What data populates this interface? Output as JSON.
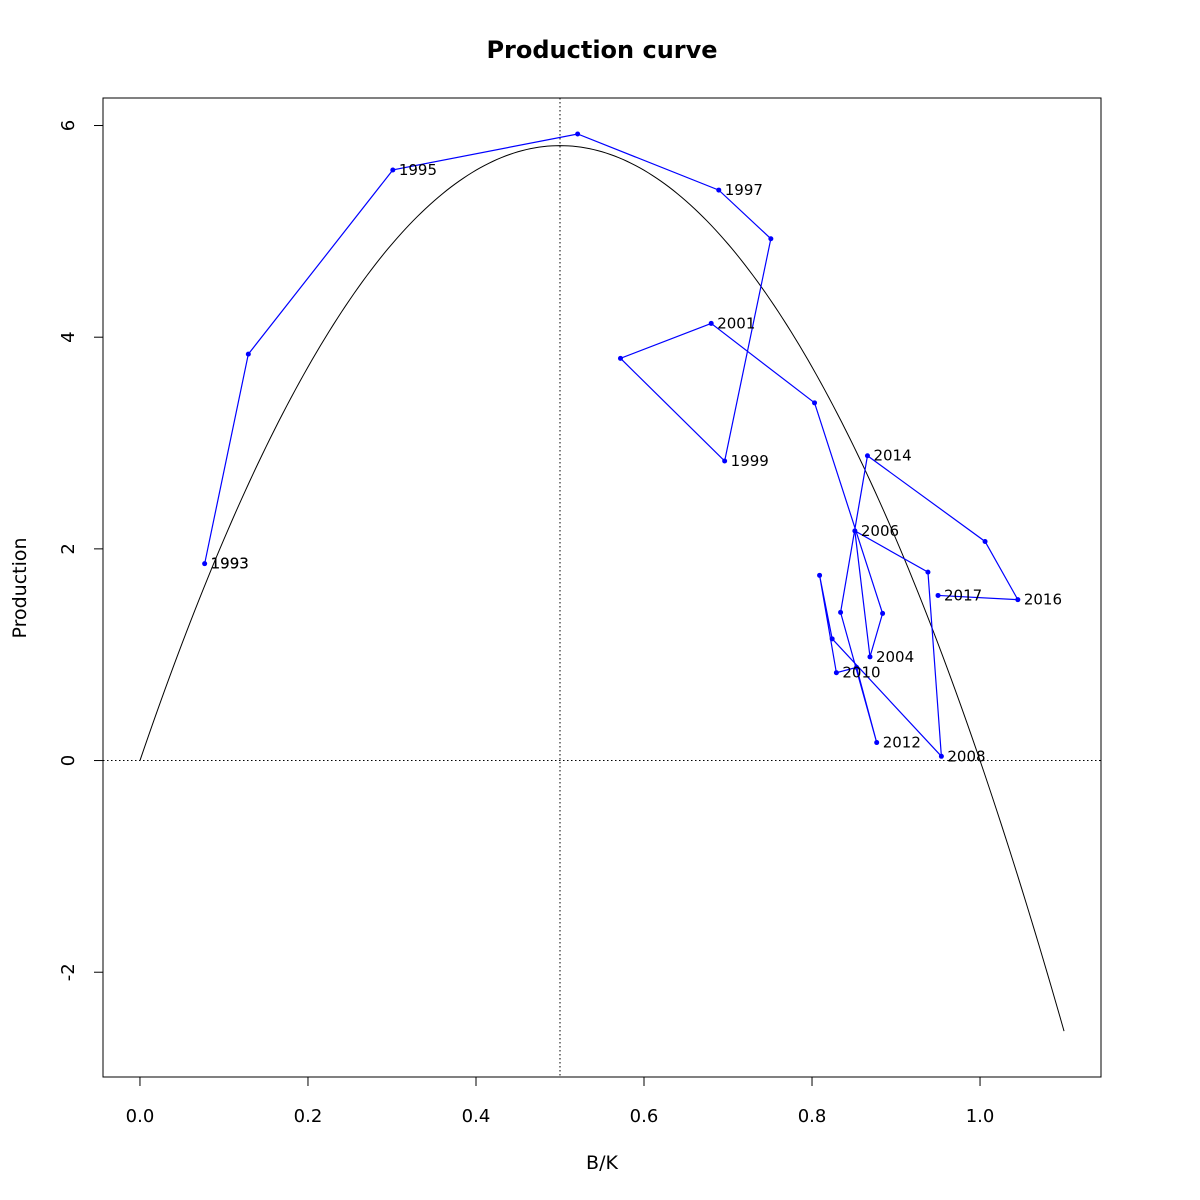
{
  "chart_data": {
    "type": "line",
    "title": "Production curve",
    "xlabel": "B/K",
    "ylabel": "Production",
    "xlim": [
      -0.044,
      1.144
    ],
    "ylim": [
      -2.99,
      6.26
    ],
    "xticks": [
      0.0,
      0.2,
      0.4,
      0.6,
      0.8,
      1.0
    ],
    "xtick_labels": [
      "0.0",
      "0.2",
      "0.4",
      "0.6",
      "0.8",
      "1.0"
    ],
    "yticks": [
      -2,
      0,
      2,
      4,
      6
    ],
    "ytick_labels": [
      "-2",
      "0",
      "2",
      "4",
      "6"
    ],
    "grid": false,
    "reference_lines": {
      "vertical_x": 0.5,
      "horizontal_y": 0
    },
    "curve": {
      "form": "parabola",
      "x_range": [
        0.0,
        1.1
      ],
      "peak": [
        0.5,
        5.81
      ],
      "color": "#000000"
    },
    "series": [
      {
        "color": "#0000ff",
        "points": [
          {
            "year": "1993",
            "x": 0.077,
            "y": 1.86,
            "label": "1993"
          },
          {
            "year": "1994",
            "x": 0.129,
            "y": 3.84,
            "label": ""
          },
          {
            "year": "1995",
            "x": 0.301,
            "y": 5.58,
            "label": "1995"
          },
          {
            "year": "1996",
            "x": 0.521,
            "y": 5.92,
            "label": ""
          },
          {
            "year": "1997",
            "x": 0.689,
            "y": 5.39,
            "label": "1997"
          },
          {
            "year": "1998",
            "x": 0.751,
            "y": 4.93,
            "label": ""
          },
          {
            "year": "1999",
            "x": 0.696,
            "y": 2.83,
            "label": "1999"
          },
          {
            "year": "2000",
            "x": 0.572,
            "y": 3.8,
            "label": ""
          },
          {
            "year": "2001",
            "x": 0.68,
            "y": 4.13,
            "label": "2001"
          },
          {
            "year": "2002",
            "x": 0.803,
            "y": 3.38,
            "label": ""
          },
          {
            "year": "2003",
            "x": 0.884,
            "y": 1.39,
            "label": ""
          },
          {
            "year": "2004",
            "x": 0.869,
            "y": 0.98,
            "label": "2004"
          },
          {
            "year": "2005",
            "x": 0.851,
            "y": 2.17,
            "label": ""
          },
          {
            "year": "2006",
            "x": 0.938,
            "y": 1.78,
            "label": "2006"
          },
          {
            "year": "2007",
            "x": 0.954,
            "y": 0.04,
            "label": ""
          },
          {
            "year": "2008",
            "x": 0.824,
            "y": 1.15,
            "label": "2008"
          },
          {
            "year": "2009",
            "x": 0.809,
            "y": 1.75,
            "label": ""
          },
          {
            "year": "2010",
            "x": 0.829,
            "y": 0.83,
            "label": "2010"
          },
          {
            "year": "2011",
            "x": 0.853,
            "y": 0.88,
            "label": ""
          },
          {
            "year": "2012",
            "x": 0.877,
            "y": 0.17,
            "label": "2012"
          },
          {
            "year": "2013",
            "x": 0.834,
            "y": 1.4,
            "label": ""
          },
          {
            "year": "2014",
            "x": 0.866,
            "y": 2.88,
            "label": "2014"
          },
          {
            "year": "2015",
            "x": 1.006,
            "y": 2.07,
            "label": ""
          },
          {
            "year": "2016",
            "x": 1.045,
            "y": 1.52,
            "label": "2016"
          },
          {
            "year": "2017",
            "x": 0.95,
            "y": 1.56,
            "label": "2017"
          }
        ],
        "extra_labels": [
          {
            "text": "1993",
            "x": 0.077,
            "y": 1.86
          }
        ],
        "label_overrides": {
          "2006": {
            "x": 0.851,
            "y": 2.17
          },
          "2008": {
            "x": 0.954,
            "y": 0.04
          }
        }
      }
    ]
  }
}
